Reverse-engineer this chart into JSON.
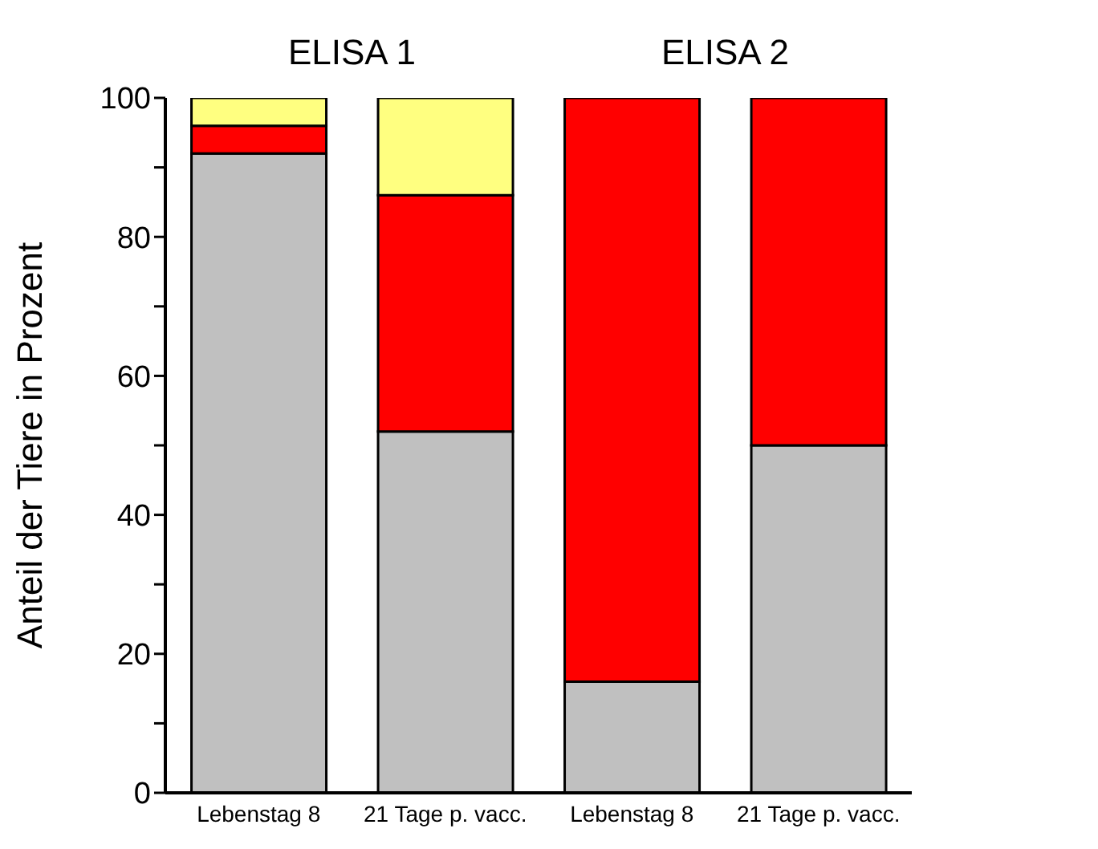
{
  "chart_data": {
    "type": "bar",
    "stacked": true,
    "ylabel": "Anteil der Tiere in Prozent",
    "annotations": [
      "ELISA 1",
      "ELISA 2"
    ],
    "categories": [
      "Lebenstag 8",
      "21 Tage p. vacc.",
      "Lebenstag 8",
      "21 Tage p. vacc."
    ],
    "series": [
      {
        "color": "#c0c0c0",
        "values": [
          92,
          52,
          16,
          50
        ]
      },
      {
        "color": "#ff0000",
        "values": [
          4,
          34,
          84,
          50
        ]
      },
      {
        "color": "#ffff80",
        "values": [
          4,
          14,
          0,
          0
        ]
      }
    ],
    "ylim": [
      0,
      100
    ],
    "yticks": [
      0,
      {
        "value": 10,
        "label": null
      },
      20,
      {
        "value": 30,
        "label": null
      },
      40,
      {
        "value": 50,
        "label": null
      },
      60,
      {
        "value": 70,
        "label": null
      },
      80,
      {
        "value": 90,
        "label": null
      },
      100
    ],
    "grid": false,
    "legend": false
  }
}
